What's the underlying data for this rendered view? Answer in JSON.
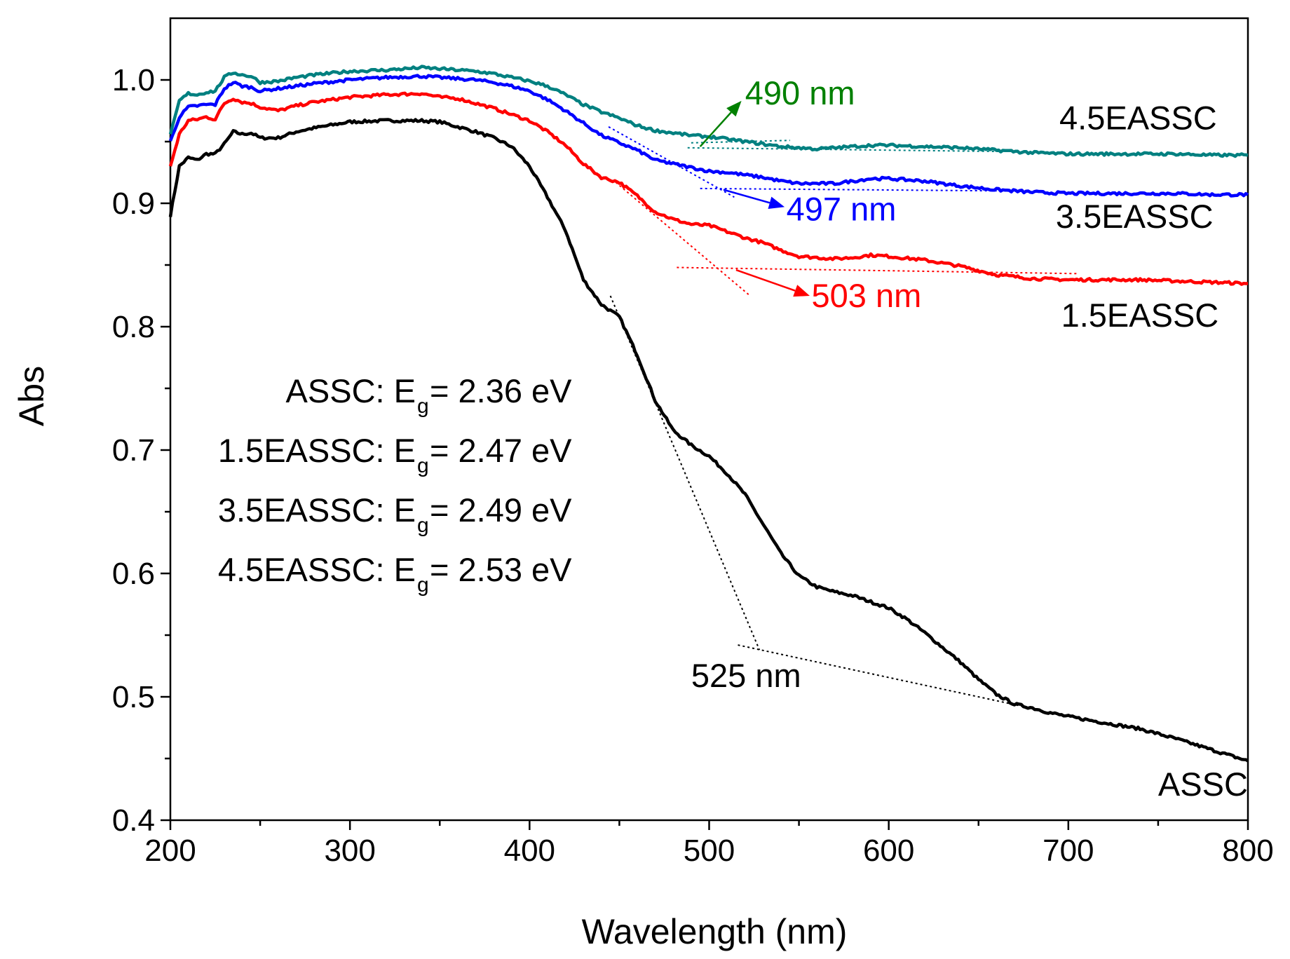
{
  "chart_data": {
    "type": "line",
    "title": "",
    "xlabel": "Wavelength (nm)",
    "ylabel": "Abs",
    "xlim": [
      200,
      800
    ],
    "ylim": [
      0.4,
      1.05
    ],
    "xticks": [
      200,
      300,
      400,
      500,
      600,
      700,
      800
    ],
    "yticks": [
      0.4,
      0.5,
      0.6,
      0.7,
      0.8,
      0.9,
      1.0
    ],
    "xtick_labels": [
      "200",
      "300",
      "400",
      "500",
      "600",
      "700",
      "800"
    ],
    "ytick_labels": [
      "0.4",
      "0.5",
      "0.6",
      "0.7",
      "0.8",
      "0.9",
      "1.0"
    ],
    "series": [
      {
        "name": "ASSC",
        "color": "#000000",
        "x": [
          200,
          205,
          210,
          215,
          220,
          225,
          230,
          235,
          240,
          245,
          250,
          260,
          270,
          280,
          300,
          320,
          340,
          350,
          360,
          370,
          380,
          390,
          400,
          410,
          420,
          430,
          440,
          450,
          460,
          470,
          480,
          490,
          500,
          510,
          520,
          530,
          540,
          550,
          560,
          570,
          580,
          590,
          600,
          610,
          620,
          630,
          640,
          650,
          660,
          670,
          680,
          690,
          700,
          720,
          740,
          760,
          780,
          800
        ],
        "y": [
          0.89,
          0.93,
          0.937,
          0.935,
          0.94,
          0.94,
          0.948,
          0.958,
          0.956,
          0.957,
          0.953,
          0.953,
          0.958,
          0.961,
          0.966,
          0.967,
          0.967,
          0.966,
          0.962,
          0.958,
          0.953,
          0.946,
          0.93,
          0.905,
          0.878,
          0.838,
          0.818,
          0.808,
          0.777,
          0.74,
          0.716,
          0.704,
          0.695,
          0.681,
          0.664,
          0.64,
          0.616,
          0.598,
          0.589,
          0.585,
          0.582,
          0.577,
          0.572,
          0.563,
          0.552,
          0.54,
          0.528,
          0.514,
          0.502,
          0.494,
          0.491,
          0.487,
          0.484,
          0.479,
          0.474,
          0.466,
          0.457,
          0.448
        ]
      },
      {
        "name": "1.5EASSC",
        "color": "#ff0000",
        "x": [
          200,
          205,
          210,
          215,
          220,
          225,
          230,
          235,
          240,
          245,
          250,
          260,
          270,
          280,
          300,
          320,
          340,
          350,
          360,
          370,
          380,
          390,
          400,
          410,
          420,
          430,
          440,
          450,
          460,
          470,
          480,
          490,
          500,
          510,
          520,
          530,
          540,
          550,
          560,
          570,
          580,
          590,
          600,
          620,
          640,
          660,
          680,
          700,
          720,
          740,
          760,
          780,
          800
        ],
        "y": [
          0.93,
          0.956,
          0.967,
          0.968,
          0.97,
          0.968,
          0.981,
          0.985,
          0.982,
          0.981,
          0.978,
          0.975,
          0.979,
          0.982,
          0.986,
          0.988,
          0.989,
          0.986,
          0.985,
          0.981,
          0.977,
          0.972,
          0.967,
          0.958,
          0.947,
          0.932,
          0.921,
          0.917,
          0.906,
          0.893,
          0.887,
          0.883,
          0.882,
          0.877,
          0.872,
          0.868,
          0.862,
          0.857,
          0.856,
          0.855,
          0.856,
          0.858,
          0.857,
          0.854,
          0.849,
          0.842,
          0.839,
          0.838,
          0.838,
          0.838,
          0.837,
          0.836,
          0.835
        ]
      },
      {
        "name": "3.5EASSC",
        "color": "#0000ff",
        "x": [
          200,
          205,
          210,
          215,
          220,
          225,
          230,
          235,
          240,
          245,
          250,
          260,
          270,
          280,
          300,
          320,
          340,
          350,
          360,
          370,
          380,
          390,
          400,
          410,
          420,
          430,
          440,
          450,
          460,
          470,
          480,
          490,
          500,
          510,
          520,
          530,
          540,
          550,
          560,
          570,
          580,
          590,
          600,
          620,
          640,
          660,
          680,
          700,
          720,
          740,
          760,
          780,
          800
        ],
        "y": [
          0.95,
          0.97,
          0.978,
          0.979,
          0.98,
          0.98,
          0.993,
          0.998,
          0.995,
          0.994,
          0.991,
          0.993,
          0.995,
          0.997,
          1.0,
          1.002,
          1.003,
          1.002,
          1.001,
          1.0,
          0.998,
          0.995,
          0.991,
          0.984,
          0.975,
          0.965,
          0.955,
          0.949,
          0.943,
          0.935,
          0.932,
          0.929,
          0.926,
          0.925,
          0.923,
          0.921,
          0.918,
          0.916,
          0.916,
          0.916,
          0.918,
          0.92,
          0.92,
          0.918,
          0.914,
          0.911,
          0.909,
          0.908,
          0.908,
          0.908,
          0.908,
          0.907,
          0.907
        ]
      },
      {
        "name": "4.5EASSC",
        "color": "#008080",
        "x": [
          200,
          205,
          210,
          215,
          220,
          225,
          230,
          235,
          240,
          245,
          250,
          260,
          270,
          280,
          300,
          320,
          340,
          350,
          360,
          370,
          380,
          390,
          400,
          410,
          420,
          430,
          440,
          450,
          460,
          470,
          480,
          490,
          500,
          510,
          520,
          530,
          540,
          550,
          560,
          570,
          580,
          590,
          600,
          620,
          640,
          660,
          680,
          700,
          720,
          740,
          760,
          780,
          800
        ],
        "y": [
          0.955,
          0.983,
          0.989,
          0.988,
          0.99,
          0.991,
          1.002,
          1.006,
          1.004,
          1.003,
          0.998,
          0.999,
          1.002,
          1.004,
          1.007,
          1.008,
          1.01,
          1.009,
          1.008,
          1.007,
          1.005,
          1.002,
          0.999,
          0.995,
          0.988,
          0.98,
          0.974,
          0.969,
          0.963,
          0.959,
          0.957,
          0.955,
          0.954,
          0.952,
          0.95,
          0.948,
          0.946,
          0.945,
          0.944,
          0.945,
          0.946,
          0.947,
          0.947,
          0.946,
          0.945,
          0.943,
          0.941,
          0.94,
          0.94,
          0.94,
          0.94,
          0.939,
          0.939
        ]
      }
    ],
    "tangent_lines": [
      {
        "name": "ASSC tangents",
        "color": "#000000",
        "segments": [
          [
            [
              445,
              0.825
            ],
            [
              528,
              0.538
            ]
          ],
          [
            [
              516,
              0.542
            ],
            [
              685,
              0.489
            ]
          ]
        ]
      },
      {
        "name": "1.5EASSC tangents",
        "color": "#ff0000",
        "segments": [
          [
            [
              448,
              0.917
            ],
            [
              522,
              0.826
            ]
          ],
          [
            [
              482,
              0.848
            ],
            [
              705,
              0.843
            ]
          ]
        ]
      },
      {
        "name": "3.5EASSC tangents",
        "color": "#0000ff",
        "segments": [
          [
            [
              444,
              0.962
            ],
            [
              514,
              0.905
            ]
          ],
          [
            [
              495,
              0.912
            ],
            [
              668,
              0.91
            ]
          ]
        ]
      },
      {
        "name": "4.5EASSC tangents",
        "color": "#008080",
        "segments": [
          [
            [
              490,
              0.949
            ],
            [
              545,
              0.951
            ]
          ],
          [
            [
              488,
              0.945
            ],
            [
              662,
              0.942
            ]
          ]
        ]
      }
    ],
    "arrows": [
      {
        "name": "arrow-490",
        "color": "#008000",
        "from": [
          495,
          0.946
        ],
        "to": [
          518,
          0.983
        ]
      },
      {
        "name": "arrow-497",
        "color": "#0000ff",
        "from": [
          508,
          0.911
        ],
        "to": [
          542,
          0.897
        ]
      },
      {
        "name": "arrow-503",
        "color": "#ff0000",
        "from": [
          515,
          0.846
        ],
        "to": [
          556,
          0.825
        ]
      }
    ],
    "annotations": {
      "peak_490": {
        "text": "490 nm",
        "color": "#008000",
        "x": 520,
        "y": 0.98
      },
      "peak_497": {
        "text": "497 nm",
        "color": "#0000ff",
        "x": 543,
        "y": 0.886
      },
      "peak_503": {
        "text": "503 nm",
        "color": "#ff0000",
        "x": 557,
        "y": 0.816
      },
      "peak_525": {
        "text": "525 nm",
        "color": "#000000",
        "x": 490,
        "y": 0.508
      }
    },
    "series_labels": [
      {
        "text": "4.5EASSC",
        "x": 695,
        "y": 0.96
      },
      {
        "text": "3.5EASSC",
        "x": 693,
        "y": 0.88
      },
      {
        "text": "1.5EASSC",
        "x": 696,
        "y": 0.8
      },
      {
        "text": "ASSC",
        "x": 750,
        "y": 0.42
      }
    ],
    "bandgap_box": [
      {
        "prefix": "ASSC: E",
        "sub": "g",
        "suffix": "= 2.36 eV"
      },
      {
        "prefix": "1.5EASSC: E",
        "sub": "g",
        "suffix": "= 2.47 eV"
      },
      {
        "prefix": "3.5EASSC: E",
        "sub": "g",
        "suffix": "= 2.49 eV"
      },
      {
        "prefix": "4.5EASSC: E",
        "sub": "g",
        "suffix": "= 2.53 eV"
      }
    ]
  }
}
